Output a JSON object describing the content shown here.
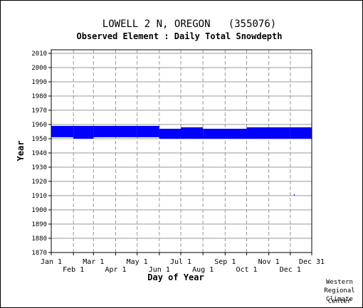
{
  "chart_data": {
    "type": "heatmap",
    "title": "LOWELL 2 N, OREGON   (355076)",
    "subtitle": "Observed Element : Daily Total Snowdepth",
    "xlabel": "Day of Year",
    "ylabel": "Year",
    "x_domain": [
      1,
      365
    ],
    "ylim": [
      1870,
      2010
    ],
    "y_ticks": [
      1870,
      1880,
      1890,
      1900,
      1910,
      1920,
      1930,
      1940,
      1950,
      1960,
      1970,
      1980,
      1990,
      2000,
      2010
    ],
    "x_ticks_upper": [
      {
        "label": "Jan 1",
        "day": 1
      },
      {
        "label": "Mar 1",
        "day": 60
      },
      {
        "label": "May 1",
        "day": 121
      },
      {
        "label": "Jul 1",
        "day": 182
      },
      {
        "label": "Sep 1",
        "day": 244
      },
      {
        "label": "Nov 1",
        "day": 305
      },
      {
        "label": "Dec 31",
        "day": 365
      }
    ],
    "x_ticks_lower": [
      {
        "label": "Feb 1",
        "day": 32
      },
      {
        "label": "Apr 1",
        "day": 91
      },
      {
        "label": "Jun 1",
        "day": 152
      },
      {
        "label": "Aug 1",
        "day": 213
      },
      {
        "label": "Oct 1",
        "day": 274
      },
      {
        "label": "Dec 1",
        "day": 335
      }
    ],
    "grid": true,
    "data_color": "#0000ff",
    "records": [
      {
        "day_start": 1,
        "day_end": 32,
        "year_start": 1951,
        "year_end": 1959
      },
      {
        "day_start": 32,
        "day_end": 60,
        "year_start": 1950,
        "year_end": 1959
      },
      {
        "day_start": 60,
        "day_end": 121,
        "year_start": 1951,
        "year_end": 1959
      },
      {
        "day_start": 121,
        "day_end": 152,
        "year_start": 1951,
        "year_end": 1959
      },
      {
        "day_start": 152,
        "day_end": 182,
        "year_start": 1950,
        "year_end": 1957
      },
      {
        "day_start": 182,
        "day_end": 213,
        "year_start": 1950,
        "year_end": 1958
      },
      {
        "day_start": 213,
        "day_end": 274,
        "year_start": 1950,
        "year_end": 1957
      },
      {
        "day_start": 274,
        "day_end": 335,
        "year_start": 1950,
        "year_end": 1958
      },
      {
        "day_start": 335,
        "day_end": 365,
        "year_start": 1950,
        "year_end": 1958
      },
      {
        "day_start": 340,
        "day_end": 341,
        "year_start": 1910,
        "year_end": 1911
      }
    ]
  },
  "footer": {
    "line1": "Western",
    "line2": "Regional",
    "line3": "Climate",
    "line4": "Center"
  }
}
